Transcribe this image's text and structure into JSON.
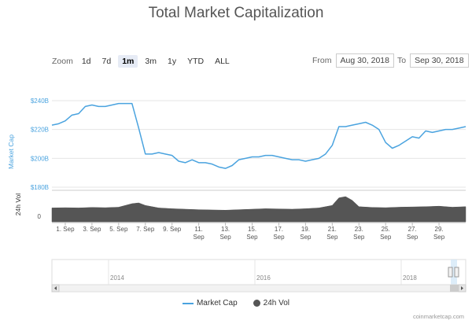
{
  "title": "Total Market Capitalization",
  "zoom": {
    "label": "Zoom",
    "buttons": [
      "1d",
      "7d",
      "1m",
      "3m",
      "1y",
      "YTD",
      "ALL"
    ],
    "active": "1m"
  },
  "range": {
    "from_label": "From",
    "from_value": "Aug 30, 2018",
    "to_label": "To",
    "to_value": "Sep 30, 2018"
  },
  "legend": {
    "market_cap": "Market Cap",
    "volume": "24h Vol"
  },
  "credit": "coinmarketcap.com",
  "colors": {
    "market_cap": "#4aa3df",
    "volume": "#555555",
    "navigator_fill": "#cfe6f7"
  },
  "chart_data": {
    "type": "line",
    "title": "Total Market Capitalization",
    "ylabel": "Market Cap",
    "ylabel_volume": "24h Vol",
    "ylim": [
      180,
      240
    ],
    "yticks": [
      180,
      200,
      220,
      240
    ],
    "ytick_labels": [
      "$180B",
      "$200B",
      "$220B",
      "$240B"
    ],
    "volume_ticks": [
      "0"
    ],
    "xlim": [
      0,
      31
    ],
    "xticks": [
      1,
      3,
      5,
      7,
      9,
      11,
      13,
      15,
      17,
      19,
      21,
      23,
      25,
      27,
      29
    ],
    "xtick_labels": [
      "1. Sep",
      "3. Sep",
      "5. Sep",
      "7. Sep",
      "9. Sep",
      "11. Sep",
      "13. Sep",
      "15. Sep",
      "17. Sep",
      "19. Sep",
      "21. Sep",
      "23. Sep",
      "25. Sep",
      "27. Sep",
      "29. Sep"
    ],
    "series": [
      {
        "name": "Market Cap",
        "x": [
          0,
          0.5,
          1,
          1.5,
          2,
          2.5,
          3,
          3.5,
          4,
          4.5,
          5,
          5.5,
          6,
          6.5,
          7,
          7.5,
          8,
          8.5,
          9,
          9.5,
          10,
          10.5,
          11,
          11.5,
          12,
          12.5,
          13,
          13.5,
          14,
          14.5,
          15,
          15.5,
          16,
          16.5,
          17,
          17.5,
          18,
          18.5,
          19,
          19.5,
          20,
          20.5,
          21,
          21.5,
          22,
          22.5,
          23,
          23.5,
          24,
          24.5,
          25,
          25.5,
          26,
          26.5,
          27,
          27.5,
          28,
          28.5,
          29,
          29.5,
          30,
          30.5,
          31
        ],
        "values": [
          223,
          224,
          226,
          230,
          231,
          236,
          237,
          236,
          236,
          237,
          238,
          238,
          238,
          221,
          203,
          203,
          204,
          203,
          202,
          198,
          197,
          199,
          197,
          197,
          196,
          194,
          193,
          195,
          199,
          200,
          201,
          201,
          202,
          202,
          201,
          200,
          199,
          199,
          198,
          199,
          200,
          203,
          209,
          222,
          222,
          223,
          224,
          225,
          223,
          220,
          211,
          207,
          209,
          212,
          215,
          214,
          219,
          218,
          219,
          220,
          220,
          221,
          222
        ]
      },
      {
        "name": "24h Vol",
        "x": [
          0,
          1,
          2,
          3,
          4,
          5,
          6,
          6.5,
          7,
          8,
          9,
          10,
          11,
          12,
          13,
          14,
          15,
          16,
          17,
          18,
          19,
          20,
          21,
          21.5,
          22,
          22.5,
          23,
          24,
          25,
          26,
          27,
          28,
          29,
          30,
          31
        ],
        "values": [
          0.55,
          0.56,
          0.55,
          0.57,
          0.56,
          0.58,
          0.72,
          0.75,
          0.65,
          0.55,
          0.52,
          0.5,
          0.48,
          0.47,
          0.46,
          0.48,
          0.5,
          0.52,
          0.51,
          0.5,
          0.52,
          0.55,
          0.65,
          0.95,
          1.0,
          0.85,
          0.6,
          0.57,
          0.56,
          0.58,
          0.59,
          0.6,
          0.62,
          0.58,
          0.6
        ]
      }
    ],
    "navigator": {
      "year_labels": [
        "2014",
        "2016",
        "2018"
      ]
    }
  }
}
